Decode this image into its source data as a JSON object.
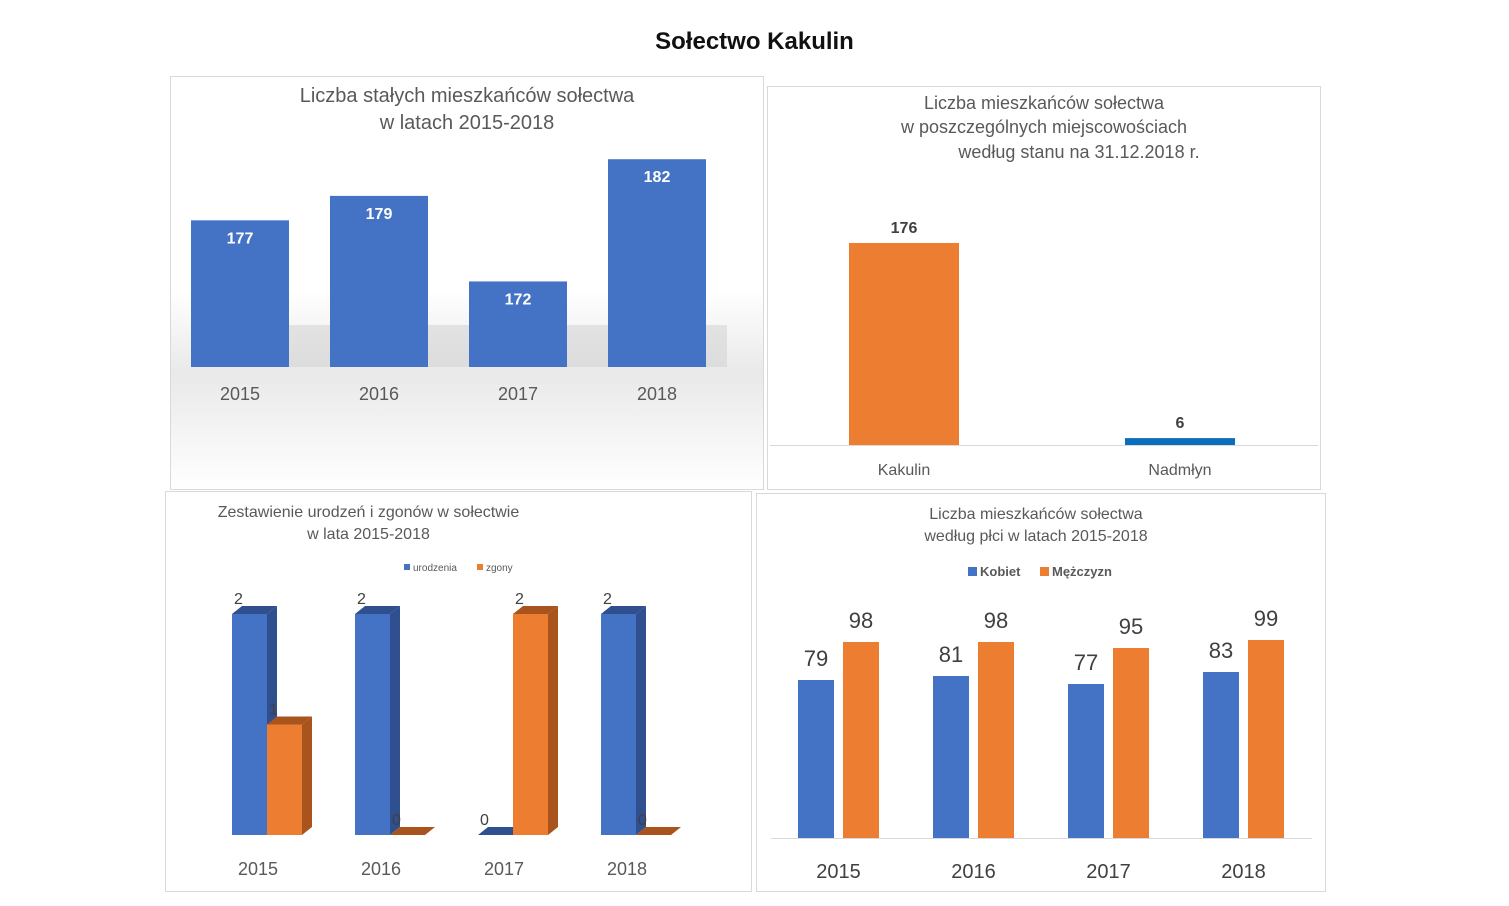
{
  "page_title": "Sołectwo Kakulin",
  "colors": {
    "blue": "#4472c4",
    "orange": "#ed7d31",
    "blue_dark": "#2f4f8e",
    "orange_dark": "#a9541d",
    "blue_line": "#0a6ebd"
  },
  "chart_data": [
    {
      "type": "bar",
      "title": "Liczba stałych mieszkańców sołectwa",
      "subtitle": "w latach 2015-2018",
      "categories": [
        "2015",
        "2016",
        "2017",
        "2018"
      ],
      "values": [
        177,
        179,
        172,
        182
      ],
      "ylim": [
        165,
        183
      ]
    },
    {
      "type": "bar",
      "title": "Liczba mieszkańców sołectwa",
      "subtitle": "w poszczególnych miejscowościach",
      "subtitle2": "według stanu na 31.12.2018 r.",
      "categories": [
        "Kakulin",
        "Nadmłyn"
      ],
      "values": [
        176,
        6
      ],
      "ylim": [
        0,
        176
      ]
    },
    {
      "type": "bar",
      "title": "Zestawienie urodzeń i zgonów w sołectwie",
      "subtitle": "w lata 2015-2018",
      "categories": [
        "2015",
        "2016",
        "2017",
        "2018"
      ],
      "series": [
        {
          "name": "urodzenia",
          "values": [
            2,
            2,
            0,
            2
          ]
        },
        {
          "name": "zgony",
          "values": [
            1,
            0,
            2,
            0
          ]
        }
      ],
      "ylim": [
        0,
        2
      ],
      "legend": "top"
    },
    {
      "type": "bar",
      "title": "Liczba mieszkańców sołectwa",
      "subtitle": "według płci w latach 2015-2018",
      "categories": [
        "2015",
        "2016",
        "2017",
        "2018"
      ],
      "series": [
        {
          "name": "Kobiet",
          "values": [
            79,
            81,
            77,
            83
          ]
        },
        {
          "name": "Mężczyzn",
          "values": [
            98,
            98,
            95,
            99
          ]
        }
      ],
      "ylim": [
        0,
        107
      ],
      "legend": "top"
    }
  ]
}
